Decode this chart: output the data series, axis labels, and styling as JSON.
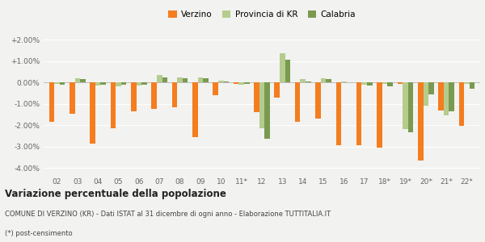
{
  "categories": [
    "02",
    "03",
    "04",
    "05",
    "06",
    "07",
    "08",
    "09",
    "10",
    "11*",
    "12",
    "13",
    "14",
    "15",
    "16",
    "17",
    "18*",
    "19*",
    "20*",
    "21*",
    "22*"
  ],
  "verzino": [
    -1.85,
    -1.45,
    -2.85,
    -2.15,
    -1.35,
    -1.25,
    -1.15,
    -2.55,
    -0.6,
    -0.05,
    -1.4,
    -0.7,
    -1.85,
    -1.7,
    -2.95,
    -2.95,
    -3.05,
    -0.05,
    -3.65,
    -1.3,
    -2.05
  ],
  "provincia": [
    -0.05,
    0.2,
    -0.15,
    -0.2,
    -0.15,
    0.35,
    0.25,
    0.25,
    0.1,
    -0.1,
    -2.15,
    1.35,
    0.15,
    0.2,
    0.05,
    -0.1,
    -0.05,
    -2.2,
    -1.1,
    -1.55,
    -0.05
  ],
  "calabria": [
    -0.1,
    0.15,
    -0.1,
    -0.1,
    -0.1,
    0.25,
    0.2,
    0.2,
    0.05,
    -0.05,
    -2.65,
    1.05,
    0.05,
    0.15,
    0.0,
    -0.15,
    -0.2,
    -2.35,
    -0.55,
    -1.35,
    -0.3
  ],
  "color_verzino": "#f47d20",
  "color_provincia": "#b5cc8e",
  "color_calabria": "#7a9a50",
  "bg_color": "#f2f2f0",
  "title": "Variazione percentuale della popolazione",
  "subtitle": "COMUNE DI VERZINO (KR) - Dati ISTAT al 31 dicembre di ogni anno - Elaborazione TUTTITALIA.IT",
  "footnote": "(*) post-censimento",
  "ylim": [
    -4.3,
    2.5
  ],
  "yticks": [
    -4.0,
    -3.0,
    -2.0,
    -1.0,
    0.0,
    1.0,
    2.0
  ]
}
